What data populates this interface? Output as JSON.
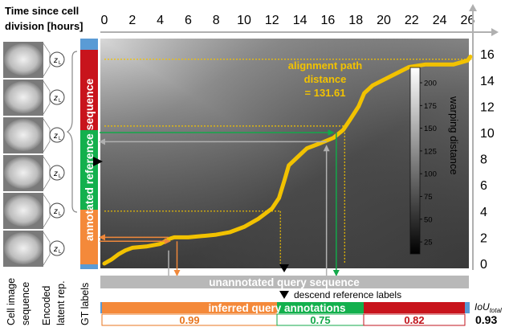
{
  "header": {
    "time_axis_label_line1": "Time since cell",
    "time_axis_label_line2": "division [hours]"
  },
  "x_axis": {
    "ticks": [
      "0",
      "2",
      "4",
      "6",
      "8",
      "10",
      "12",
      "14",
      "16",
      "18",
      "20",
      "22",
      "24",
      "26"
    ]
  },
  "y_axis": {
    "ticks": [
      "16",
      "14",
      "12",
      "10",
      "8",
      "6",
      "4",
      "2",
      "0"
    ]
  },
  "alignment": {
    "label_line1": "alignment path",
    "label_line2": "distance",
    "label_line3": "= 131.61",
    "path_hours": [
      [
        0,
        0
      ],
      [
        0.5,
        0.3
      ],
      [
        1,
        0.7
      ],
      [
        1.5,
        1.0
      ],
      [
        2,
        1.2
      ],
      [
        3,
        1.3
      ],
      [
        4,
        1.5
      ],
      [
        4.7,
        1.9
      ],
      [
        5,
        2.0
      ],
      [
        6,
        2.0
      ],
      [
        7,
        2.1
      ],
      [
        8,
        2.2
      ],
      [
        9,
        2.4
      ],
      [
        10,
        2.8
      ],
      [
        11,
        3.4
      ],
      [
        12,
        4.2
      ],
      [
        12.5,
        5.0
      ],
      [
        12.9,
        6.4
      ],
      [
        13.2,
        7.5
      ],
      [
        13.8,
        8.1
      ],
      [
        14.5,
        8.8
      ],
      [
        15.5,
        9.2
      ],
      [
        16.4,
        9.6
      ],
      [
        17.1,
        10.2
      ],
      [
        17.6,
        11.0
      ],
      [
        18.2,
        12.0
      ],
      [
        18.6,
        13.0
      ],
      [
        19.2,
        13.6
      ],
      [
        20.5,
        14.3
      ],
      [
        21.8,
        15.0
      ],
      [
        23,
        15.2
      ],
      [
        25,
        15.2
      ],
      [
        26,
        15.5
      ],
      [
        26.2,
        15.8
      ]
    ],
    "mapped_points_hours": [
      {
        "x": 5.0,
        "y": 2.0,
        "color": "#f0883a"
      },
      {
        "x": 16.6,
        "y": 9.7,
        "color": "#13a84a"
      },
      {
        "x": 16.0,
        "y": 9.4,
        "color": "#b0b0b0"
      }
    ]
  },
  "colorbar": {
    "title": "warping distance",
    "ticks": [
      "200",
      "175",
      "150",
      "125",
      "100",
      "75",
      "50",
      "25"
    ]
  },
  "left_labels": {
    "reference_label": "annotated reference sequence",
    "col1_line1": "Cell image",
    "col1_line2": "sequence",
    "col2_line1": "Encoded",
    "col2_line2": "latent rep.",
    "col3": "GT labels",
    "latent_symbol": "z",
    "latent_subscript": "L"
  },
  "bottom": {
    "query_label": "unannotated query sequence",
    "descend_label": "descend reference labels",
    "inferred_label": "inferred query annotations",
    "iou_title": "IoU",
    "iou_subscript": "total",
    "iou_value": "0.93",
    "segment_scores": [
      {
        "value": "0.99",
        "color": "#e8761e"
      },
      {
        "value": "0.75",
        "color": "#13a84a"
      },
      {
        "value": "0.82",
        "color": "#c0141c"
      }
    ]
  },
  "colors": {
    "orange": "#f4893a",
    "green": "#13b04d",
    "red": "#c8141c",
    "blue": "#5a9bd5",
    "gold": "#f2c200",
    "grey_arrow": "#b0b0b0"
  }
}
